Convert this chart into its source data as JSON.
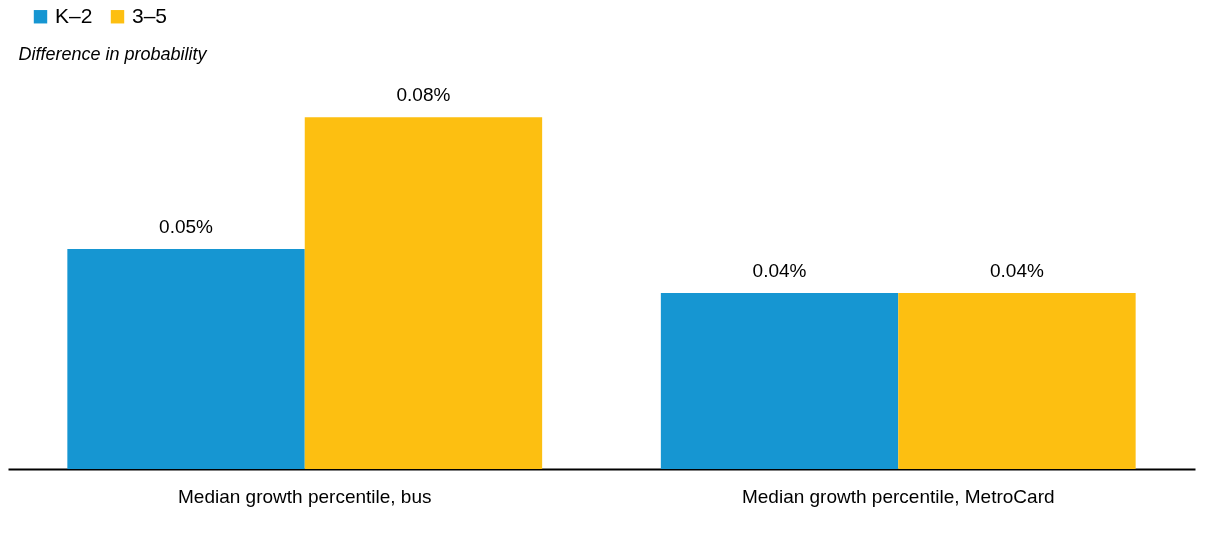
{
  "chart_data": {
    "type": "bar",
    "ylabel": "Difference in probability",
    "categories": [
      "Median growth percentile, bus",
      "Median growth percentile, MetroCard"
    ],
    "series": [
      {
        "name": "K–2",
        "color": "#1696d2",
        "values": [
          0.05,
          0.04
        ],
        "value_labels": [
          "0.05%",
          "0.04%"
        ]
      },
      {
        "name": "3–5",
        "color": "#fdbf11",
        "values": [
          0.08,
          0.04
        ],
        "value_labels": [
          "0.08%",
          "0.04%"
        ]
      }
    ],
    "legend": "top left",
    "grid": false
  }
}
